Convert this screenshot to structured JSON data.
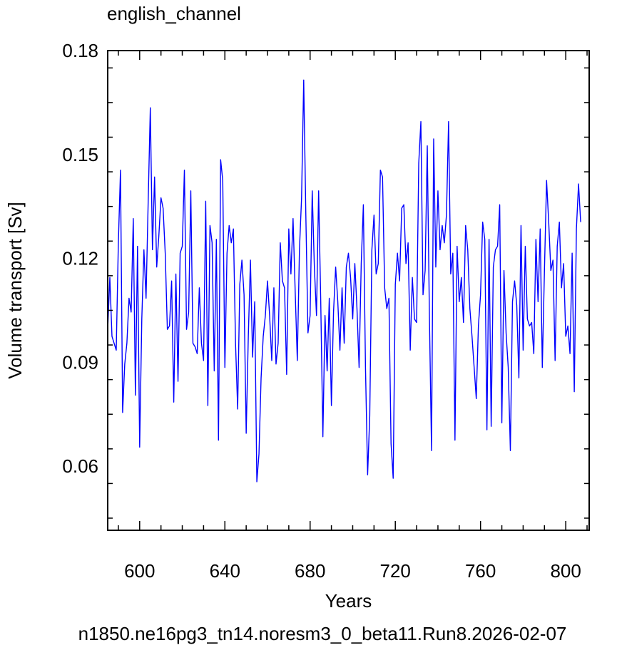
{
  "colors": {
    "line": "#0000ff",
    "axis": "#000000",
    "footer": "#0000ff"
  },
  "chart_data": {
    "type": "line",
    "title": "english_channel",
    "xlabel": "Years",
    "ylabel": "Volume transport [Sv]",
    "footer": "n1850.ne16pg3_tn14.noresm3_0_beta11.Run8.2026-02-07",
    "xlim": [
      585,
      811
    ],
    "ylim": [
      0.0415,
      0.18
    ],
    "x_ticks": [
      600,
      640,
      680,
      720,
      760,
      800
    ],
    "y_ticks": [
      0.06,
      0.09,
      0.12,
      0.15,
      0.18
    ],
    "x_tick_labels": [
      "600",
      "640",
      "680",
      "720",
      "760",
      "800"
    ],
    "y_tick_labels": [
      "0.06",
      "0.09",
      "0.12",
      "0.15",
      "0.18"
    ],
    "x_start": 585,
    "x_step": 1,
    "series": [
      {
        "values": [
          0.0995,
          0.1145,
          0.0975,
          0.0955,
          0.0935,
          0.1245,
          0.1455,
          0.0755,
          0.0895,
          0.0955,
          0.1085,
          0.1045,
          0.1315,
          0.0805,
          0.1235,
          0.0655,
          0.1025,
          0.1225,
          0.1085,
          0.1365,
          0.1635,
          0.1225,
          0.1435,
          0.1175,
          0.1265,
          0.1375,
          0.1345,
          0.1215,
          0.0995,
          0.1005,
          0.1135,
          0.0785,
          0.1155,
          0.0845,
          0.1215,
          0.1235,
          0.1455,
          0.0995,
          0.1045,
          0.1395,
          0.0955,
          0.0945,
          0.0925,
          0.1115,
          0.0955,
          0.0905,
          0.1365,
          0.0775,
          0.1295,
          0.1245,
          0.0875,
          0.1255,
          0.0675,
          0.1485,
          0.1425,
          0.0885,
          0.1215,
          0.1295,
          0.1245,
          0.1285,
          0.0955,
          0.0765,
          0.1125,
          0.1195,
          0.1095,
          0.0695,
          0.0975,
          0.1195,
          0.0915,
          0.1075,
          0.0555,
          0.0635,
          0.0855,
          0.0975,
          0.1035,
          0.1135,
          0.1035,
          0.0905,
          0.1115,
          0.0895,
          0.0955,
          0.1245,
          0.1135,
          0.1115,
          0.0865,
          0.1285,
          0.1155,
          0.1315,
          0.1105,
          0.0905,
          0.1225,
          0.1375,
          0.1715,
          0.1325,
          0.0985,
          0.1035,
          0.1395,
          0.1175,
          0.1035,
          0.1395,
          0.1075,
          0.0685,
          0.1035,
          0.0875,
          0.1085,
          0.0775,
          0.1045,
          0.1175,
          0.1075,
          0.0935,
          0.1115,
          0.0955,
          0.1175,
          0.1215,
          0.1145,
          0.1025,
          0.1185,
          0.1055,
          0.0885,
          0.1185,
          0.1355,
          0.0885,
          0.0575,
          0.0745,
          0.1225,
          0.1325,
          0.1155,
          0.1185,
          0.1455,
          0.1435,
          0.1115,
          0.1055,
          0.1085,
          0.0665,
          0.0565,
          0.1125,
          0.1215,
          0.1135,
          0.1345,
          0.1355,
          0.1185,
          0.1245,
          0.0935,
          0.1145,
          0.1025,
          0.1015,
          0.1475,
          0.1595,
          0.1095,
          0.1165,
          0.1525,
          0.1035,
          0.0645,
          0.1545,
          0.1175,
          0.1395,
          0.1225,
          0.1295,
          0.1245,
          0.1325,
          0.1595,
          0.1155,
          0.1215,
          0.0675,
          0.1235,
          0.1075,
          0.1145,
          0.1015,
          0.1295,
          0.1225,
          0.1055,
          0.0975,
          0.0885,
          0.0795,
          0.1005,
          0.1095,
          0.1305,
          0.1255,
          0.0705,
          0.1255,
          0.0715,
          0.1175,
          0.1225,
          0.1235,
          0.1355,
          0.0725,
          0.1165,
          0.0985,
          0.0885,
          0.0645,
          0.1075,
          0.1135,
          0.1065,
          0.0855,
          0.1295,
          0.0935,
          0.1235,
          0.1025,
          0.1005,
          0.1015,
          0.0925,
          0.1255,
          0.1075,
          0.1285,
          0.0885,
          0.1165,
          0.1425,
          0.1305,
          0.1165,
          0.1195,
          0.0905,
          0.1235,
          0.1305,
          0.1115,
          0.1185,
          0.0975,
          0.1005,
          0.0925,
          0.1215,
          0.0815,
          0.1285,
          0.1415,
          0.1305
        ]
      }
    ]
  }
}
